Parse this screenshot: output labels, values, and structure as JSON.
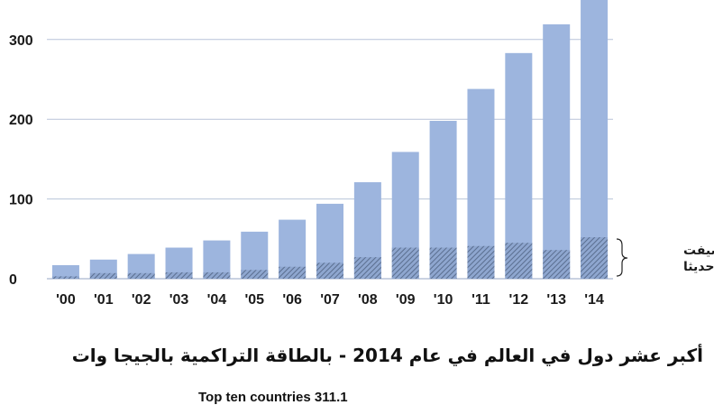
{
  "chart_data": {
    "type": "bar",
    "title": "أكبر عشر دول في العالم في عام 2014 - بالطاقة التراكمية بالجيجا وات",
    "subtitle": "Top ten countries 311.1",
    "categories": [
      "'00",
      "'01",
      "'02",
      "'03",
      "'04",
      "'05",
      "'06",
      "'07",
      "'08",
      "'09",
      "'10",
      "'11",
      "'12",
      "'13",
      "'14"
    ],
    "series": [
      {
        "name": "",
        "role": "total",
        "values": [
          17,
          24,
          31,
          39,
          48,
          59,
          74,
          94,
          121,
          159,
          198,
          238,
          283,
          319,
          370
        ]
      },
      {
        "name": "أضيفت حديثا",
        "role": "newly-added",
        "values": [
          3,
          7,
          7,
          8,
          8,
          11,
          15,
          20,
          27,
          39,
          39,
          41,
          45,
          36,
          52
        ]
      }
    ],
    "yticks": [
      0,
      100,
      200,
      300
    ],
    "ylim": [
      0,
      350
    ],
    "grid": true,
    "legend_position": "right",
    "colors": {
      "total": "#9db5de",
      "added_hatch": "#5a6e8f",
      "grid": "#b8c4d9"
    }
  }
}
